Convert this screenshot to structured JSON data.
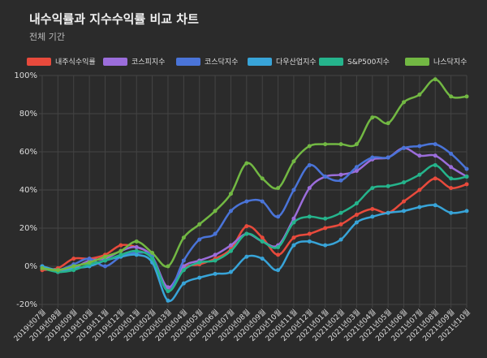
{
  "chart_data": {
    "type": "line",
    "title": "내수익률과 지수수익률 비교 차트",
    "subtitle": "전체 기간",
    "categories": [
      "2019년07월",
      "2019년08월",
      "2019년09월",
      "2019년10월",
      "2019년11월",
      "2019년12월",
      "2020년01월",
      "2020년02월",
      "2020년03월",
      "2020년04월",
      "2020년05월",
      "2020년06월",
      "2020년07월",
      "2020년08월",
      "2020년09월",
      "2020년10월",
      "2020년11월",
      "2020년12월",
      "2021년01월",
      "2021년02월",
      "2021년03월",
      "2021년04월",
      "2021년05월",
      "2021년06월",
      "2021년07월",
      "2021년08월",
      "2021년09월",
      "2021년10월"
    ],
    "series": [
      {
        "name": "내주식수익률",
        "color": "#e84a3c",
        "values": [
          -2,
          -1,
          4,
          4,
          6,
          11,
          10,
          5,
          -12,
          -1,
          1,
          4,
          9,
          21,
          15,
          6,
          15,
          17,
          20,
          22,
          27,
          30,
          28,
          34,
          40,
          46,
          41,
          43
        ]
      },
      {
        "name": "코스피지수",
        "color": "#9b6ddb",
        "values": [
          0,
          -3,
          -1,
          3,
          4,
          8,
          10,
          5,
          -11,
          0,
          3,
          6,
          11,
          17,
          13,
          11,
          25,
          41,
          47,
          48,
          50,
          56,
          57,
          62,
          58,
          58,
          52,
          47
        ]
      },
      {
        "name": "코스닥지수",
        "color": "#4a74d8",
        "values": [
          0,
          -2,
          1,
          4,
          0,
          5,
          7,
          5,
          -13,
          3,
          14,
          17,
          29,
          34,
          34,
          26,
          40,
          53,
          47,
          45,
          52,
          57,
          57,
          62,
          63,
          64,
          59,
          51
        ]
      },
      {
        "name": "다우산업지수",
        "color": "#38a4d8",
        "values": [
          0,
          -2,
          -1,
          0,
          3,
          5,
          6,
          2,
          -18,
          -9,
          -6,
          -4,
          -3,
          5,
          4,
          -2,
          11,
          13,
          11,
          14,
          23,
          26,
          28,
          29,
          31,
          32,
          28,
          29
        ]
      },
      {
        "name": "S&P500지수",
        "color": "#25b48c",
        "values": [
          -1,
          -3,
          -2,
          1,
          3,
          6,
          8,
          4,
          -13,
          -2,
          2,
          3,
          8,
          17,
          13,
          10,
          23,
          26,
          25,
          28,
          33,
          41,
          42,
          44,
          48,
          53,
          46,
          47
        ]
      },
      {
        "name": "나스닥지수",
        "color": "#72b843",
        "values": [
          -1,
          -2,
          0,
          2,
          5,
          8,
          13,
          7,
          0,
          15,
          22,
          29,
          38,
          54,
          46,
          41,
          55,
          63,
          64,
          64,
          64,
          78,
          75,
          86,
          90,
          98,
          89,
          89
        ]
      }
    ],
    "ylim": [
      -20,
      100
    ],
    "yticks": [
      {
        "value": -20,
        "label": "-20%"
      },
      {
        "value": 0,
        "label": "0%"
      },
      {
        "value": 20,
        "label": "20%"
      },
      {
        "value": 40,
        "label": "40%"
      },
      {
        "value": 60,
        "label": "60%"
      },
      {
        "value": 80,
        "label": "80%"
      },
      {
        "value": 100,
        "label": "100%"
      }
    ],
    "grid": true
  }
}
